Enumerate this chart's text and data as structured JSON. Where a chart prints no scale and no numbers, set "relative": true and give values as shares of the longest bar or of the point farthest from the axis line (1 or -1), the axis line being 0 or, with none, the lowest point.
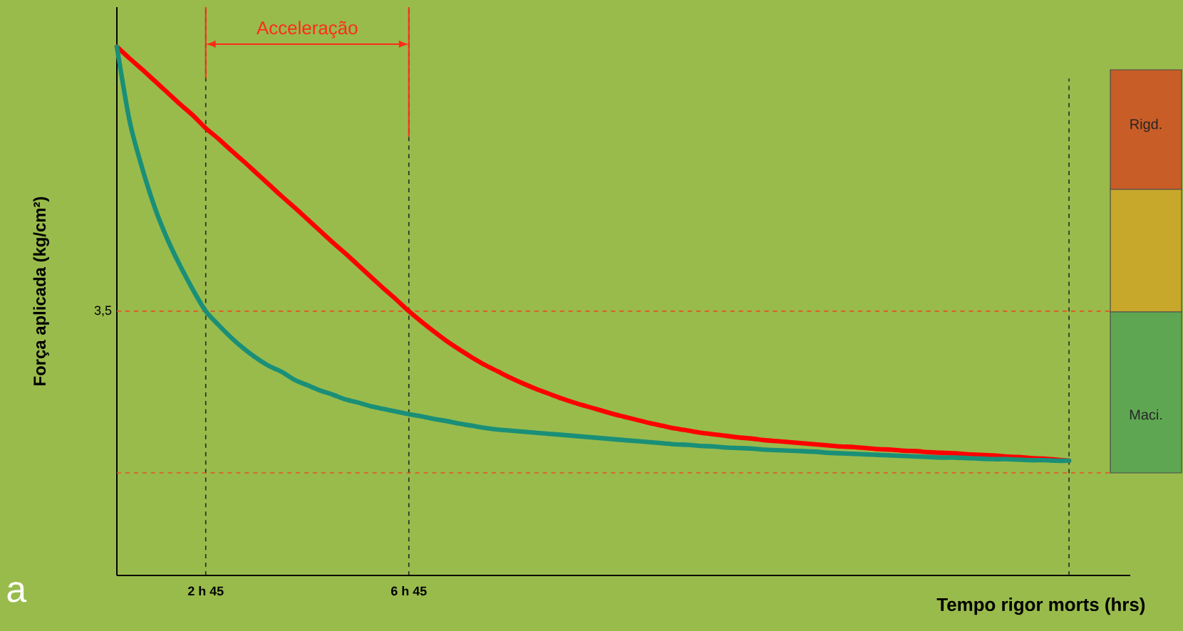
{
  "chart_data": {
    "type": "line",
    "relative": true,
    "xlabel": "Tempo rigor morts (hrs)",
    "ylabel": "Força aplicada (kg/cm²)",
    "categories": [
      null,
      null,
      null,
      null,
      null,
      null,
      null,
      "2 h 45",
      null,
      null,
      null,
      null,
      null,
      null,
      null,
      null,
      null,
      null,
      null,
      null,
      null,
      null,
      null,
      "6 h 45",
      null,
      null,
      null,
      null,
      null,
      null,
      null,
      null,
      null,
      null,
      null,
      null,
      null,
      null,
      null,
      null,
      null,
      null,
      null,
      null,
      null,
      null,
      null,
      null,
      null,
      null,
      null,
      null,
      null,
      null,
      null,
      null,
      null,
      null,
      null,
      null,
      null,
      null,
      null,
      null,
      null,
      null,
      null,
      null,
      null,
      null,
      null,
      null,
      null,
      null,
      null,
      null
    ],
    "series": [
      {
        "color": "#ff0000",
        "values": [
          1.0,
          0.978,
          0.957,
          0.935,
          0.913,
          0.891,
          0.87,
          0.846,
          0.826,
          0.804,
          0.783,
          0.761,
          0.739,
          0.717,
          0.696,
          0.674,
          0.652,
          0.63,
          0.609,
          0.587,
          0.565,
          0.543,
          0.522,
          0.5,
          0.48,
          0.461,
          0.443,
          0.427,
          0.412,
          0.398,
          0.386,
          0.374,
          0.363,
          0.353,
          0.344,
          0.335,
          0.327,
          0.32,
          0.313,
          0.306,
          0.3,
          0.294,
          0.288,
          0.283,
          0.278,
          0.274,
          0.27,
          0.267,
          0.264,
          0.261,
          0.259,
          0.256,
          0.254,
          0.252,
          0.25,
          0.248,
          0.246,
          0.244,
          0.243,
          0.241,
          0.239,
          0.238,
          0.236,
          0.235,
          0.233,
          0.232,
          0.231,
          0.229,
          0.228,
          0.227,
          0.225,
          0.224,
          0.222,
          0.221,
          0.219,
          0.217
        ]
      },
      {
        "color": "#1a8f78",
        "values": [
          1.0,
          0.86,
          0.77,
          0.695,
          0.635,
          0.585,
          0.54,
          0.5,
          0.474,
          0.45,
          0.429,
          0.411,
          0.396,
          0.385,
          0.37,
          0.36,
          0.35,
          0.342,
          0.333,
          0.327,
          0.32,
          0.315,
          0.31,
          0.305,
          0.301,
          0.296,
          0.292,
          0.287,
          0.283,
          0.279,
          0.276,
          0.274,
          0.272,
          0.27,
          0.268,
          0.266,
          0.264,
          0.262,
          0.26,
          0.258,
          0.256,
          0.254,
          0.252,
          0.25,
          0.248,
          0.247,
          0.245,
          0.244,
          0.242,
          0.241,
          0.24,
          0.238,
          0.237,
          0.236,
          0.235,
          0.234,
          0.232,
          0.231,
          0.23,
          0.229,
          0.228,
          0.227,
          0.226,
          0.225,
          0.224,
          0.223,
          0.223,
          0.222,
          0.221,
          0.22,
          0.22,
          0.219,
          0.218,
          0.218,
          0.217,
          0.217
        ]
      }
    ],
    "ref_lines": [
      {
        "axis": "y",
        "value": 0.5,
        "color": "#e8501e",
        "line_style": "dashed"
      },
      {
        "axis": "y",
        "value": 0.194,
        "color": "#e8501e",
        "line_style": "dashed"
      }
    ],
    "grid": "x",
    "annotations": [
      "3,5",
      "Acceleração",
      "Rigd.",
      "Maci.",
      "a"
    ]
  }
}
